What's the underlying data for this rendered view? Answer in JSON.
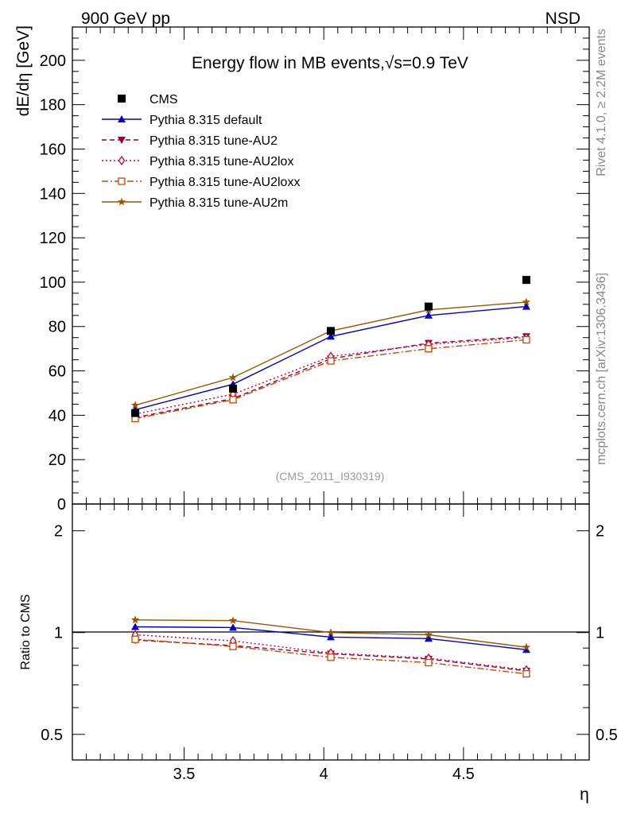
{
  "header": {
    "left_label": "900 GeV pp",
    "right_label": "NSD"
  },
  "side": {
    "rivet": "Rivet 4.1.0, ≥ 2.2M events",
    "mcplots": "mcplots.cern.ch [arXiv:1306.3436]"
  },
  "chart_data": [
    {
      "type": "line",
      "title": "Energy flow in MB events,√s=0.9 TeV",
      "xlabel": "η",
      "ylabel": "dE/dη [GeV]",
      "xlim": [
        3.1,
        4.95
      ],
      "ylim": [
        0,
        215
      ],
      "xticks": [
        "3.5",
        "4",
        "4.5"
      ],
      "yticks": [
        "0",
        "20",
        "40",
        "60",
        "80",
        "100",
        "120",
        "140",
        "160",
        "180",
        "200"
      ],
      "watermark": "(CMS_2011_I930319)",
      "x": [
        3.325,
        3.675,
        4.025,
        4.375,
        4.725
      ],
      "series": [
        {
          "name": "CMS",
          "color": "#000000",
          "marker": "square-filled",
          "line": "none",
          "values": [
            41,
            52,
            78,
            89,
            101
          ]
        },
        {
          "name": "Pythia 8.315 default",
          "color": "#0000cc",
          "marker": "triangle-up",
          "line": "solid",
          "values": [
            42.5,
            54,
            75.5,
            85,
            89
          ]
        },
        {
          "name": "Pythia 8.315 tune-AU2",
          "color": "#990033",
          "marker": "triangle-down",
          "line": "dashed",
          "values": [
            39,
            47.5,
            65.5,
            72.5,
            75.5
          ]
        },
        {
          "name": "Pythia 8.315 tune-AU2lox",
          "color": "#cc0033",
          "marker": "diamond-open",
          "line": "dotted",
          "values": [
            40.5,
            49.5,
            66.5,
            72,
            75
          ]
        },
        {
          "name": "Pythia 8.315 tune-AU2loxx",
          "color": "#cc4400",
          "marker": "square-open",
          "line": "dashdot",
          "values": [
            38.5,
            47,
            64.5,
            70,
            74
          ]
        },
        {
          "name": "Pythia 8.315 tune-AU2m",
          "color": "#995500",
          "marker": "star",
          "line": "solid",
          "values": [
            44.5,
            57,
            78,
            87.5,
            91
          ]
        }
      ]
    },
    {
      "type": "line",
      "title": "",
      "xlabel": "η",
      "ylabel": "Ratio to CMS",
      "xlim": [
        3.1,
        4.95
      ],
      "ylim": [
        0.42,
        2.4
      ],
      "yscale": "log",
      "xticks": [
        "3.5",
        "4",
        "4.5"
      ],
      "yticks": [
        "0.5",
        "1",
        "2"
      ],
      "x": [
        3.325,
        3.675,
        4.025,
        4.375,
        4.725
      ],
      "series": [
        {
          "name": "Pythia 8.315 default",
          "values": [
            1.04,
            1.035,
            0.97,
            0.96,
            0.89
          ]
        },
        {
          "name": "Pythia 8.315 tune-AU2",
          "values": [
            0.95,
            0.915,
            0.865,
            0.835,
            0.77
          ]
        },
        {
          "name": "Pythia 8.315 tune-AU2lox",
          "values": [
            0.985,
            0.945,
            0.87,
            0.84,
            0.775
          ]
        },
        {
          "name": "Pythia 8.315 tune-AU2loxx",
          "values": [
            0.955,
            0.91,
            0.845,
            0.815,
            0.755
          ]
        },
        {
          "name": "Pythia 8.315 tune-AU2m",
          "values": [
            1.09,
            1.085,
            1.0,
            0.985,
            0.905
          ]
        }
      ]
    }
  ]
}
